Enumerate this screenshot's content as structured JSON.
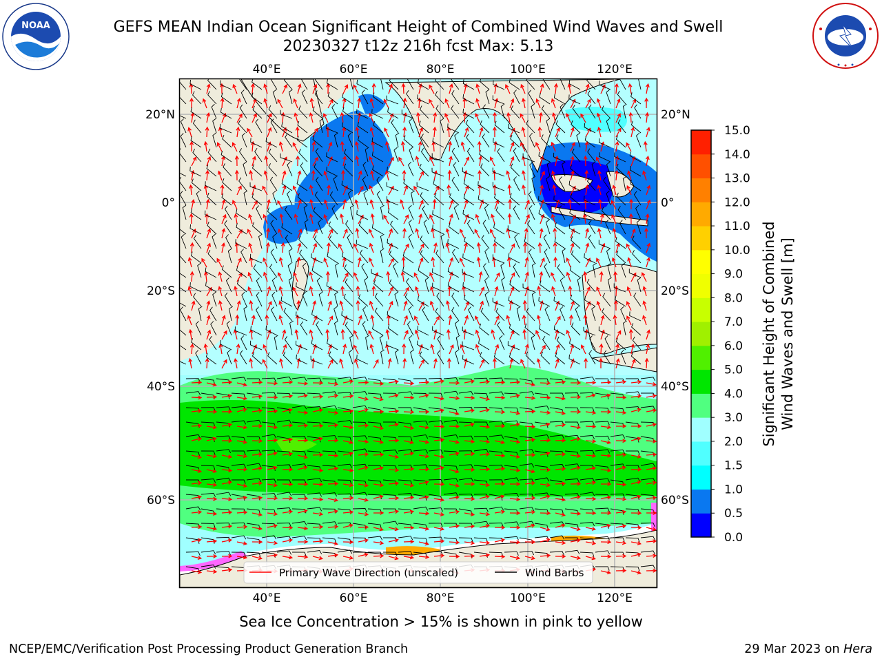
{
  "header": {
    "title_line1": "GEFS MEAN Indian Ocean Significant Height of Combined Wind Waves and Swell",
    "title_line2": "20230327 t12z 216h fcst   Max: 5.13"
  },
  "logos": {
    "left": {
      "icon": "noaa-logo-icon",
      "center_text": "NOAA",
      "ring_text": "NATIONAL OCEANIC AND ATMOSPHERIC ADMINISTRATION · U.S. DEPARTMENT OF COMMERCE"
    },
    "right": {
      "icon": "nws-logo-icon",
      "ring_text": "NATIONAL WEATHER SERVICE"
    }
  },
  "map": {
    "lon_ticks": [
      "40°E",
      "60°E",
      "80°E",
      "100°E",
      "120°E"
    ],
    "lat_ticks": [
      "20°N",
      "0°",
      "20°S",
      "40°S",
      "60°S"
    ],
    "colors": {
      "land": "#efecdc",
      "grid": "#b4b4b4",
      "wave_arrow": "#ff0000",
      "wind_barb": "#000000"
    },
    "legend": {
      "wave_label": "Primary Wave Direction (unscaled)",
      "barb_label": "Wind Barbs"
    }
  },
  "colorbar": {
    "label_line1": "Significant Height of Combined",
    "label_line2": "Wind Waves and Swell [m]",
    "ticks": [
      "0.0",
      "0.5",
      "1.0",
      "1.5",
      "2.0",
      "3.0",
      "4.0",
      "5.0",
      "6.0",
      "7.0",
      "8.0",
      "9.0",
      "10.0",
      "11.0",
      "12.0",
      "13.0",
      "14.0",
      "15.0"
    ],
    "colors": [
      "#0000ff",
      "#0a78f0",
      "#00ffff",
      "#50ffff",
      "#a0ffff",
      "#50ff80",
      "#00e600",
      "#50f000",
      "#a0f000",
      "#c8ff00",
      "#f0ff00",
      "#ffff00",
      "#ffd000",
      "#ffaa00",
      "#ff8000",
      "#ff5000",
      "#ff2000"
    ]
  },
  "note": "Sea Ice Concentration > 15% is shown in pink to yellow",
  "footer": {
    "left": "NCEP/EMC/Verification Post Processing Product Generation Branch",
    "right_prefix": "29 Mar 2023 on ",
    "right_host": "Hera"
  }
}
